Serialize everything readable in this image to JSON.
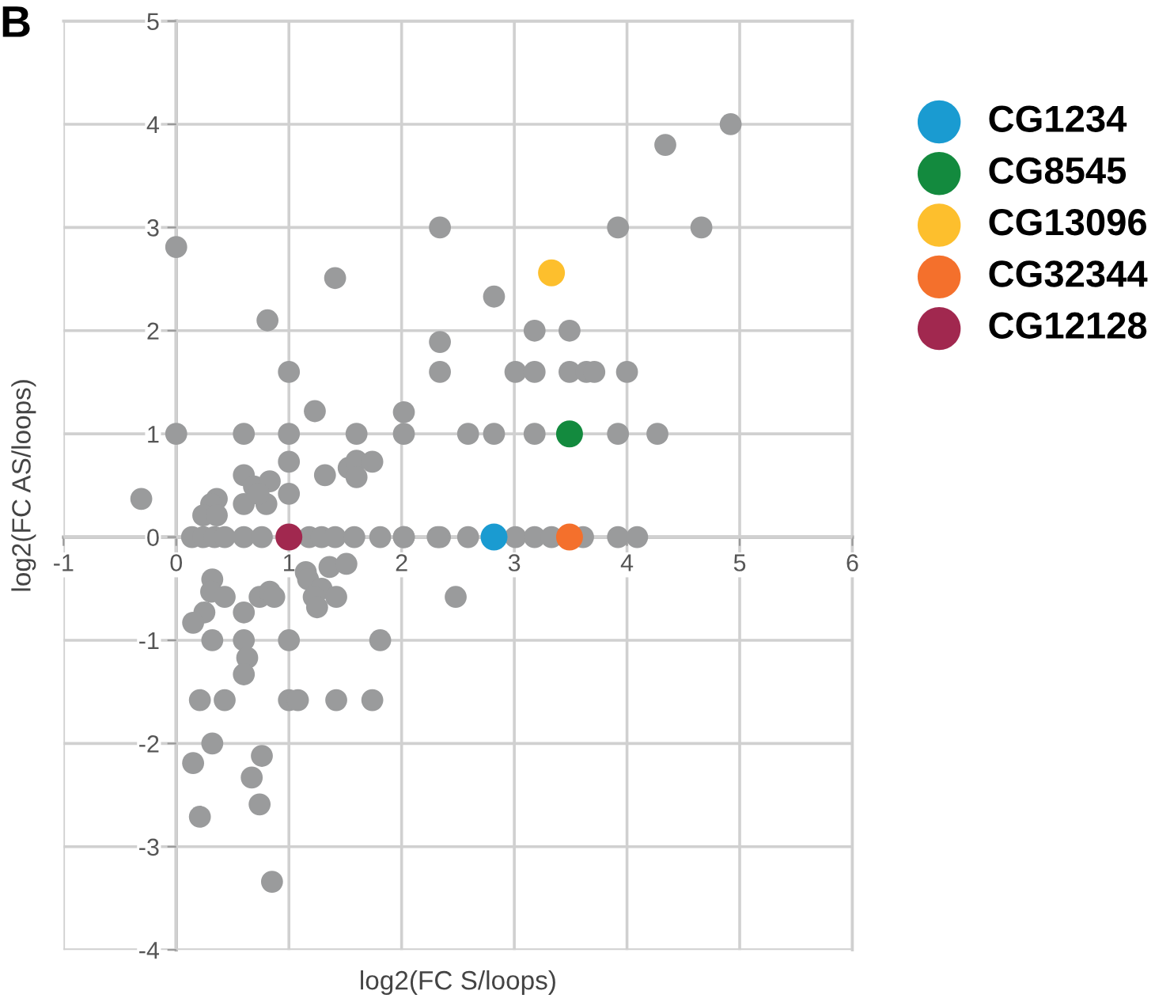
{
  "chart_data": {
    "type": "scatter",
    "xlabel": "log2(FC S/loops)",
    "ylabel": "log2(FC AS/loops)",
    "annotations": [
      "B"
    ],
    "xlim": [
      -1,
      6
    ],
    "ylim": [
      -4,
      5
    ],
    "xticks": [
      -1,
      0,
      1,
      2,
      3,
      4,
      5,
      6
    ],
    "yticks": [
      -4,
      -3,
      -2,
      -1,
      0,
      1,
      2,
      3,
      4,
      5
    ],
    "grid": true,
    "legend": "right",
    "marker": "circle",
    "series": [
      {
        "color": "#9a9b9c",
        "x": [
          4.92,
          4.34,
          2.34,
          3.92,
          4.66,
          2.82,
          3.18,
          3.49,
          2.34,
          2.34,
          3.01,
          3.18,
          3.49,
          3.64,
          3.71,
          4.0,
          2.02,
          2.02,
          2.59,
          2.82,
          3.18,
          3.92,
          4.27,
          2.02,
          2.34,
          2.59,
          3.01,
          3.18,
          3.33,
          3.61,
          3.92,
          4.09,
          -0.31,
          0,
          0,
          1.41,
          0.81,
          1.0,
          1.23,
          0.6,
          1.0,
          1.6,
          1.0,
          1.0,
          1.32,
          1.53,
          1.6,
          1.6,
          1.74,
          0.6,
          0.6,
          0.69,
          0.83,
          0.8,
          0.73,
          0.36,
          0.31,
          0.24,
          0.36,
          0.14,
          0.24,
          0.34,
          0.43,
          0.6,
          0.76,
          1.18,
          1.29,
          1.41,
          1.58,
          1.81,
          2.02,
          2.32,
          1.15,
          1.17,
          1.36,
          1.51,
          1.29,
          1.22,
          1.25,
          1.42,
          2.48,
          0.32,
          0.31,
          0.43,
          0.25,
          0.15,
          0.6,
          0.74,
          0.83,
          0.87,
          0.32,
          0.6,
          1.0,
          1.81,
          0.63,
          0.6,
          0.21,
          0.43,
          1.0,
          1.08,
          1.42,
          1.74,
          0.32,
          0.15,
          0.76,
          0.67,
          0.74,
          0.21,
          0.85
        ],
        "values": [
          4.0,
          3.8,
          3.0,
          3.0,
          3.0,
          2.33,
          2.0,
          2.0,
          1.89,
          1.6,
          1.6,
          1.6,
          1.6,
          1.6,
          1.6,
          1.6,
          1.21,
          1.0,
          1.0,
          1.0,
          1.0,
          1.0,
          1.0,
          0,
          0,
          0,
          0,
          0,
          0,
          0,
          0,
          0,
          0.37,
          2.81,
          1.0,
          2.51,
          2.1,
          1.6,
          1.22,
          1.0,
          1.0,
          1.0,
          0.73,
          0.42,
          0.6,
          0.67,
          0.74,
          0.58,
          0.73,
          0.6,
          0.32,
          0.49,
          0.54,
          0.32,
          0.42,
          0.37,
          0.32,
          0.21,
          0.21,
          0,
          0,
          0,
          0,
          0,
          0,
          0,
          0,
          0,
          0,
          0,
          0,
          0,
          -0.34,
          -0.41,
          -0.29,
          -0.26,
          -0.5,
          -0.58,
          -0.68,
          -0.58,
          -0.58,
          -0.41,
          -0.53,
          -0.58,
          -0.73,
          -0.83,
          -0.73,
          -0.58,
          -0.53,
          -0.58,
          -1.0,
          -1.0,
          -1.0,
          -1.0,
          -1.17,
          -1.33,
          -1.58,
          -1.58,
          -1.58,
          -1.58,
          -1.58,
          -1.58,
          -2.0,
          -2.19,
          -2.12,
          -2.33,
          -2.59,
          -2.71,
          -3.34
        ]
      },
      {
        "name": "CG1234",
        "color": "#1a9bd1",
        "x": [
          2.82
        ],
        "values": [
          0
        ]
      },
      {
        "name": "CG8545",
        "color": "#138a3e",
        "x": [
          3.49
        ],
        "values": [
          1.0
        ]
      },
      {
        "name": "CG13096",
        "color": "#fdbf2d",
        "x": [
          3.33
        ],
        "values": [
          2.56
        ]
      },
      {
        "name": "CG32344",
        "color": "#f4702c",
        "x": [
          3.49
        ],
        "values": [
          0
        ]
      },
      {
        "name": "CG12128",
        "color": "#a1284f",
        "x": [
          1.0
        ],
        "values": [
          0
        ]
      }
    ]
  }
}
